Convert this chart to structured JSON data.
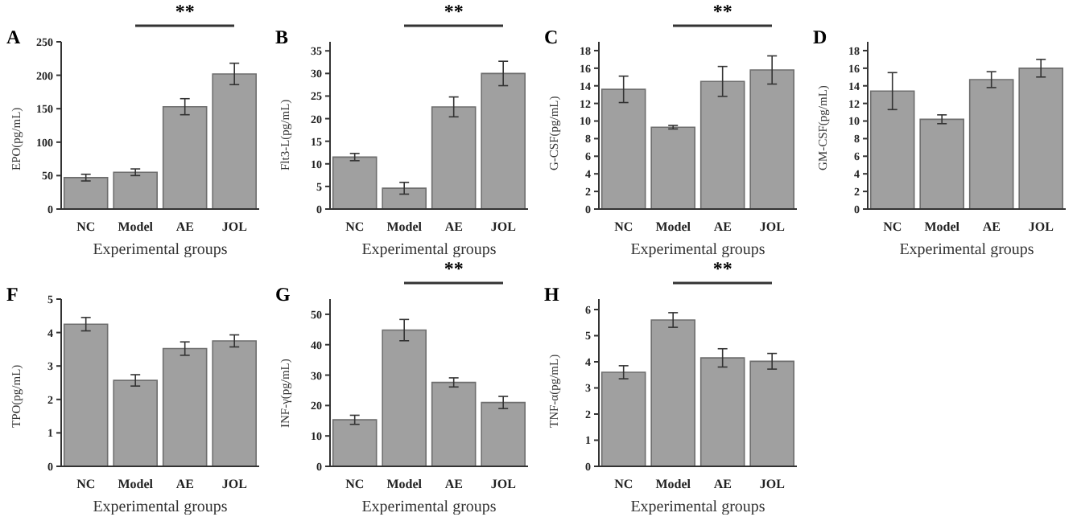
{
  "chart_data": [
    {
      "type": "bar",
      "title": "A",
      "xlabel": "Experimental groups",
      "ylabel": "EPO(pg/mL)",
      "categories": [
        "NC",
        "Model",
        "AE",
        "JOL"
      ],
      "values": [
        47,
        55,
        153,
        202
      ],
      "errors": [
        5,
        5,
        12,
        16
      ],
      "color": "#a0a0a0",
      "ylim": [
        0,
        250
      ],
      "yticks": [
        0,
        50,
        100,
        150,
        200,
        250
      ],
      "annotations": [
        "**"
      ]
    },
    {
      "type": "bar",
      "title": "B",
      "xlabel": "Experimental groups",
      "ylabel": "Flt3-L(pg/mL)",
      "categories": [
        "NC",
        "Model",
        "AE",
        "JOL"
      ],
      "values": [
        11.5,
        4.6,
        22.6,
        30
      ],
      "errors": [
        0.8,
        1.3,
        2.2,
        2.7
      ],
      "color": "#a0a0a0",
      "ylim": [
        0,
        37
      ],
      "yticks": [
        0,
        5,
        10,
        15,
        20,
        25,
        30,
        35
      ],
      "annotations": [
        "**"
      ]
    },
    {
      "type": "bar",
      "title": "C",
      "xlabel": "Experimental groups",
      "ylabel": "G-CSF(pg/mL)",
      "categories": [
        "NC",
        "Model",
        "AE",
        "JOL"
      ],
      "values": [
        13.6,
        9.3,
        14.5,
        15.8
      ],
      "errors": [
        1.5,
        0.2,
        1.7,
        1.6
      ],
      "color": "#a0a0a0",
      "ylim": [
        0,
        19
      ],
      "yticks": [
        0,
        2,
        4,
        6,
        8,
        10,
        12,
        14,
        16,
        18
      ],
      "annotations": [
        "**"
      ]
    },
    {
      "type": "bar",
      "title": "D",
      "xlabel": "Experimental groups",
      "ylabel": "GM-CSF(pg/mL)",
      "categories": [
        "NC",
        "Model",
        "AE",
        "JOL"
      ],
      "values": [
        13.4,
        10.2,
        14.7,
        16
      ],
      "errors": [
        2.1,
        0.5,
        0.9,
        1
      ],
      "color": "#a0a0a0",
      "ylim": [
        0,
        19
      ],
      "yticks": [
        0,
        2,
        4,
        6,
        8,
        10,
        12,
        14,
        16,
        18
      ]
    },
    {
      "type": "bar",
      "title": "F",
      "xlabel": "Experimental groups",
      "ylabel": "TPO(pg/mL)",
      "categories": [
        "NC",
        "Model",
        "AE",
        "JOL"
      ],
      "values": [
        4.25,
        2.57,
        3.52,
        3.75
      ],
      "errors": [
        0.2,
        0.17,
        0.2,
        0.18
      ],
      "color": "#a0a0a0",
      "ylim": [
        0,
        5
      ],
      "yticks": [
        0,
        1,
        2,
        3,
        4,
        5
      ]
    },
    {
      "type": "bar",
      "title": "G",
      "xlabel": "Experimental groups",
      "ylabel": "INF-γ(pg/mL)",
      "categories": [
        "NC",
        "Model",
        "AE",
        "JOL"
      ],
      "values": [
        15.3,
        44.8,
        27.6,
        21
      ],
      "errors": [
        1.5,
        3.5,
        1.5,
        2
      ],
      "color": "#a0a0a0",
      "ylim": [
        0,
        55
      ],
      "yticks": [
        0,
        10,
        20,
        30,
        40,
        50
      ],
      "annotations": [
        "**"
      ]
    },
    {
      "type": "bar",
      "title": "H",
      "xlabel": "Experimental groups",
      "ylabel": "TNF-α(pg/mL)",
      "categories": [
        "NC",
        "Model",
        "AE",
        "JOL"
      ],
      "values": [
        3.6,
        5.6,
        4.15,
        4.02
      ],
      "errors": [
        0.25,
        0.28,
        0.35,
        0.3
      ],
      "color": "#a0a0a0",
      "ylim": [
        0,
        6.4
      ],
      "yticks": [
        0,
        1,
        2,
        3,
        4,
        5,
        6
      ],
      "annotations": [
        "**"
      ]
    }
  ]
}
